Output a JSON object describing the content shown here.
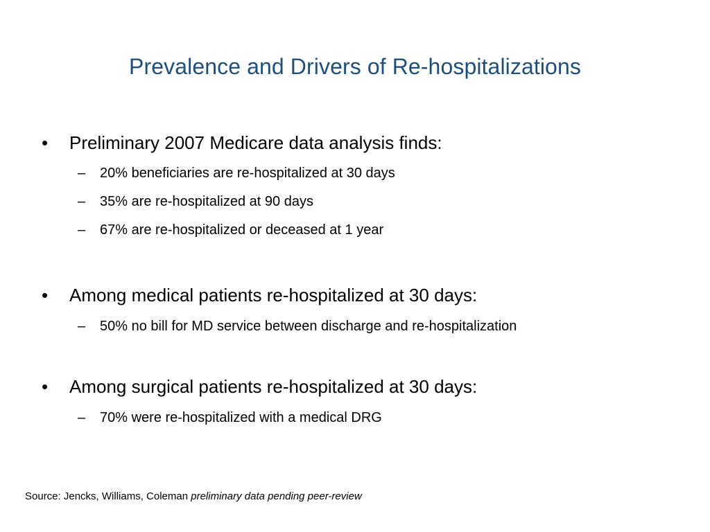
{
  "title": "Prevalence and Drivers of Re-hospitalizations",
  "bullet_glyph": "•",
  "sub_glyph": "–",
  "sections": [
    {
      "heading": "Preliminary  2007 Medicare data analysis finds:",
      "items": [
        "20% beneficiaries are re-hospitalized at 30 days",
        "35% are re-hospitalized at 90 days",
        "67% are re-hospitalized or deceased at 1 year"
      ]
    },
    {
      "heading": "Among medical patients re-hospitalized at 30 days:",
      "items": [
        "50% no bill for MD service between discharge and re-hospitalization"
      ]
    },
    {
      "heading": "Among surgical patients re-hospitalized at 30 days:",
      "items": [
        "70% were re-hospitalized with a medical DRG"
      ]
    }
  ],
  "source": {
    "prefix": "Source: Jencks, Williams, Coleman ",
    "note": "preliminary data pending peer-review"
  },
  "colors": {
    "title": "#1f4e79",
    "text": "#000000",
    "background": "#ffffff"
  }
}
